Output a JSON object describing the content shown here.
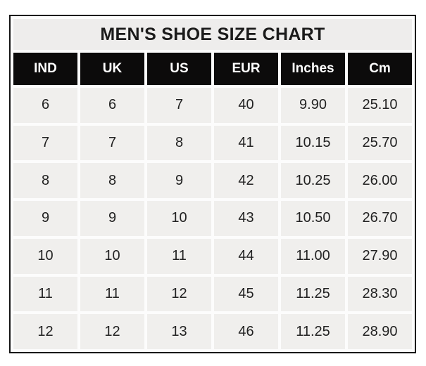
{
  "chart_data": {
    "type": "table",
    "title": "MEN'S SHOE SIZE CHART",
    "columns": [
      "IND",
      "UK",
      "US",
      "EUR",
      "Inches",
      "Cm"
    ],
    "rows": [
      [
        "6",
        "6",
        "7",
        "40",
        "9.90",
        "25.10"
      ],
      [
        "7",
        "7",
        "8",
        "41",
        "10.15",
        "25.70"
      ],
      [
        "8",
        "8",
        "9",
        "42",
        "10.25",
        "26.00"
      ],
      [
        "9",
        "9",
        "10",
        "43",
        "10.50",
        "26.70"
      ],
      [
        "10",
        "10",
        "11",
        "44",
        "11.00",
        "27.90"
      ],
      [
        "11",
        "11",
        "12",
        "45",
        "11.25",
        "28.30"
      ],
      [
        "12",
        "12",
        "13",
        "46",
        "11.25",
        "28.90"
      ]
    ]
  },
  "colors": {
    "page_bg": "#ffffff",
    "grid_gap": "#fcfcfc",
    "border": "#141414",
    "header_bg": "#0c0b0b",
    "header_text": "#ffffff",
    "title_bg": "#eeedec",
    "cell_bg": "#f0efed",
    "text": "#222222",
    "title_text": "#1b1b1b"
  }
}
